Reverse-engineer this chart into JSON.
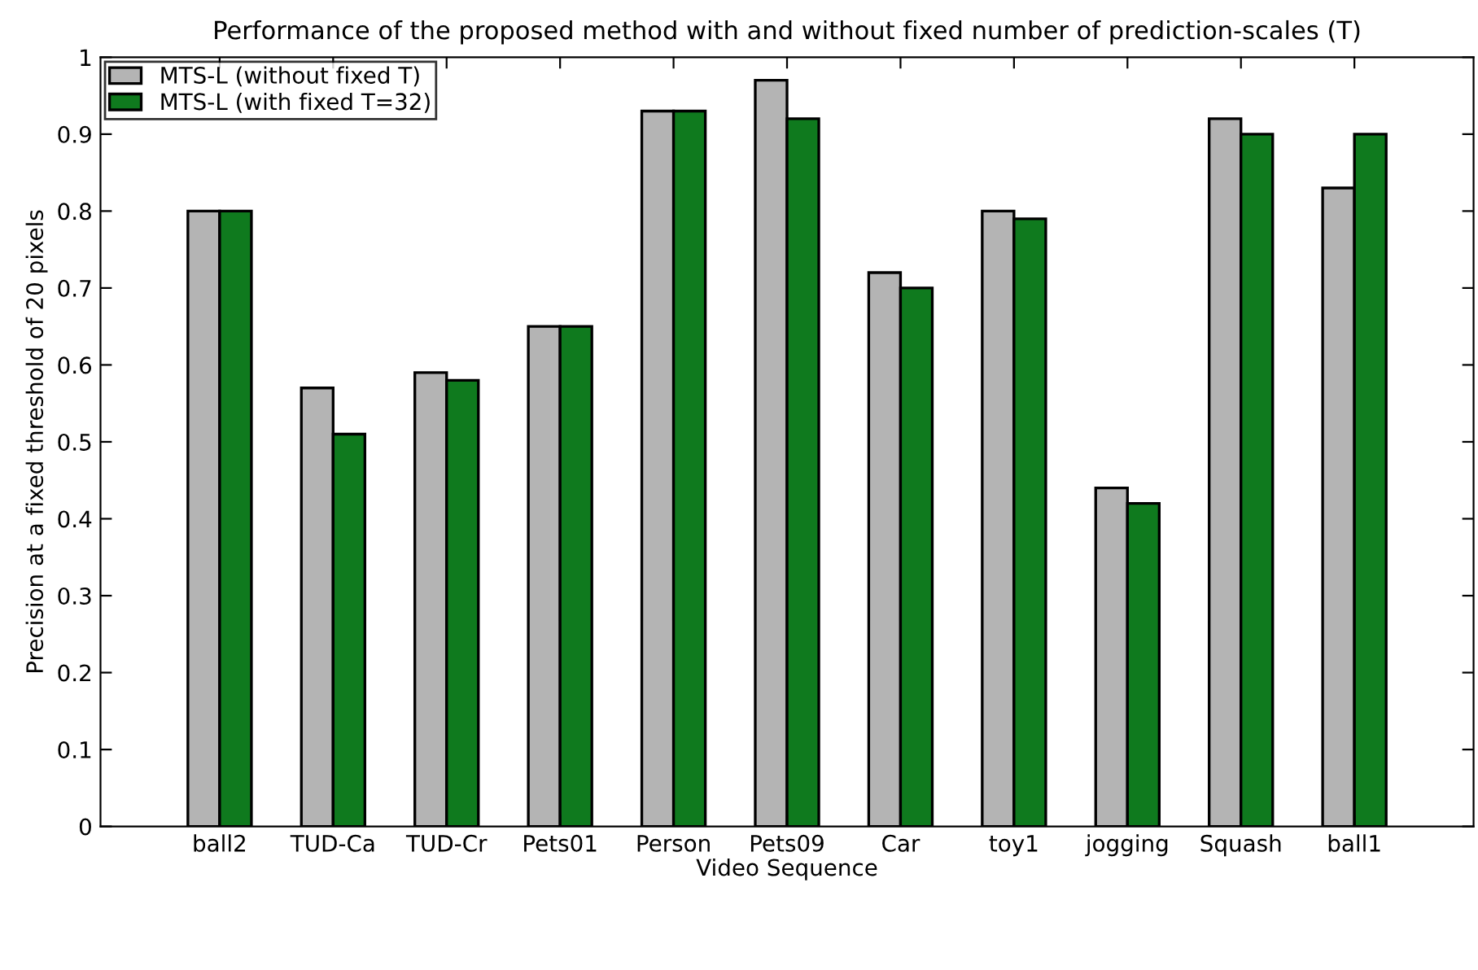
{
  "chart_data": {
    "type": "bar",
    "title": "Performance of the proposed method with and without fixed number of prediction-scales (T)",
    "xlabel": "Video Sequence",
    "ylabel": "Precision at a fixed threshold of 20 pixels",
    "categories": [
      "ball2",
      "TUD-Ca",
      "TUD-Cr",
      "Pets01",
      "Person",
      "Pets09",
      "Car",
      "toy1",
      "jogging",
      "Squash",
      "ball1"
    ],
    "series": [
      {
        "name": "MTS-L (without fixed T)",
        "color": "#b4b4b4",
        "values": [
          0.8,
          0.57,
          0.59,
          0.65,
          0.93,
          0.97,
          0.72,
          0.8,
          0.44,
          0.92,
          0.83
        ]
      },
      {
        "name": "MTS-L (with fixed T=32)",
        "color": "#0f7a1e",
        "values": [
          0.8,
          0.51,
          0.58,
          0.65,
          0.93,
          0.92,
          0.7,
          0.79,
          0.42,
          0.9,
          0.9
        ]
      }
    ],
    "ylim": [
      0,
      1
    ],
    "yticks": [
      0,
      0.1,
      0.2,
      0.3,
      0.4,
      0.5,
      0.6,
      0.7,
      0.8,
      0.9,
      1
    ],
    "grid": false,
    "legend": "top left"
  }
}
